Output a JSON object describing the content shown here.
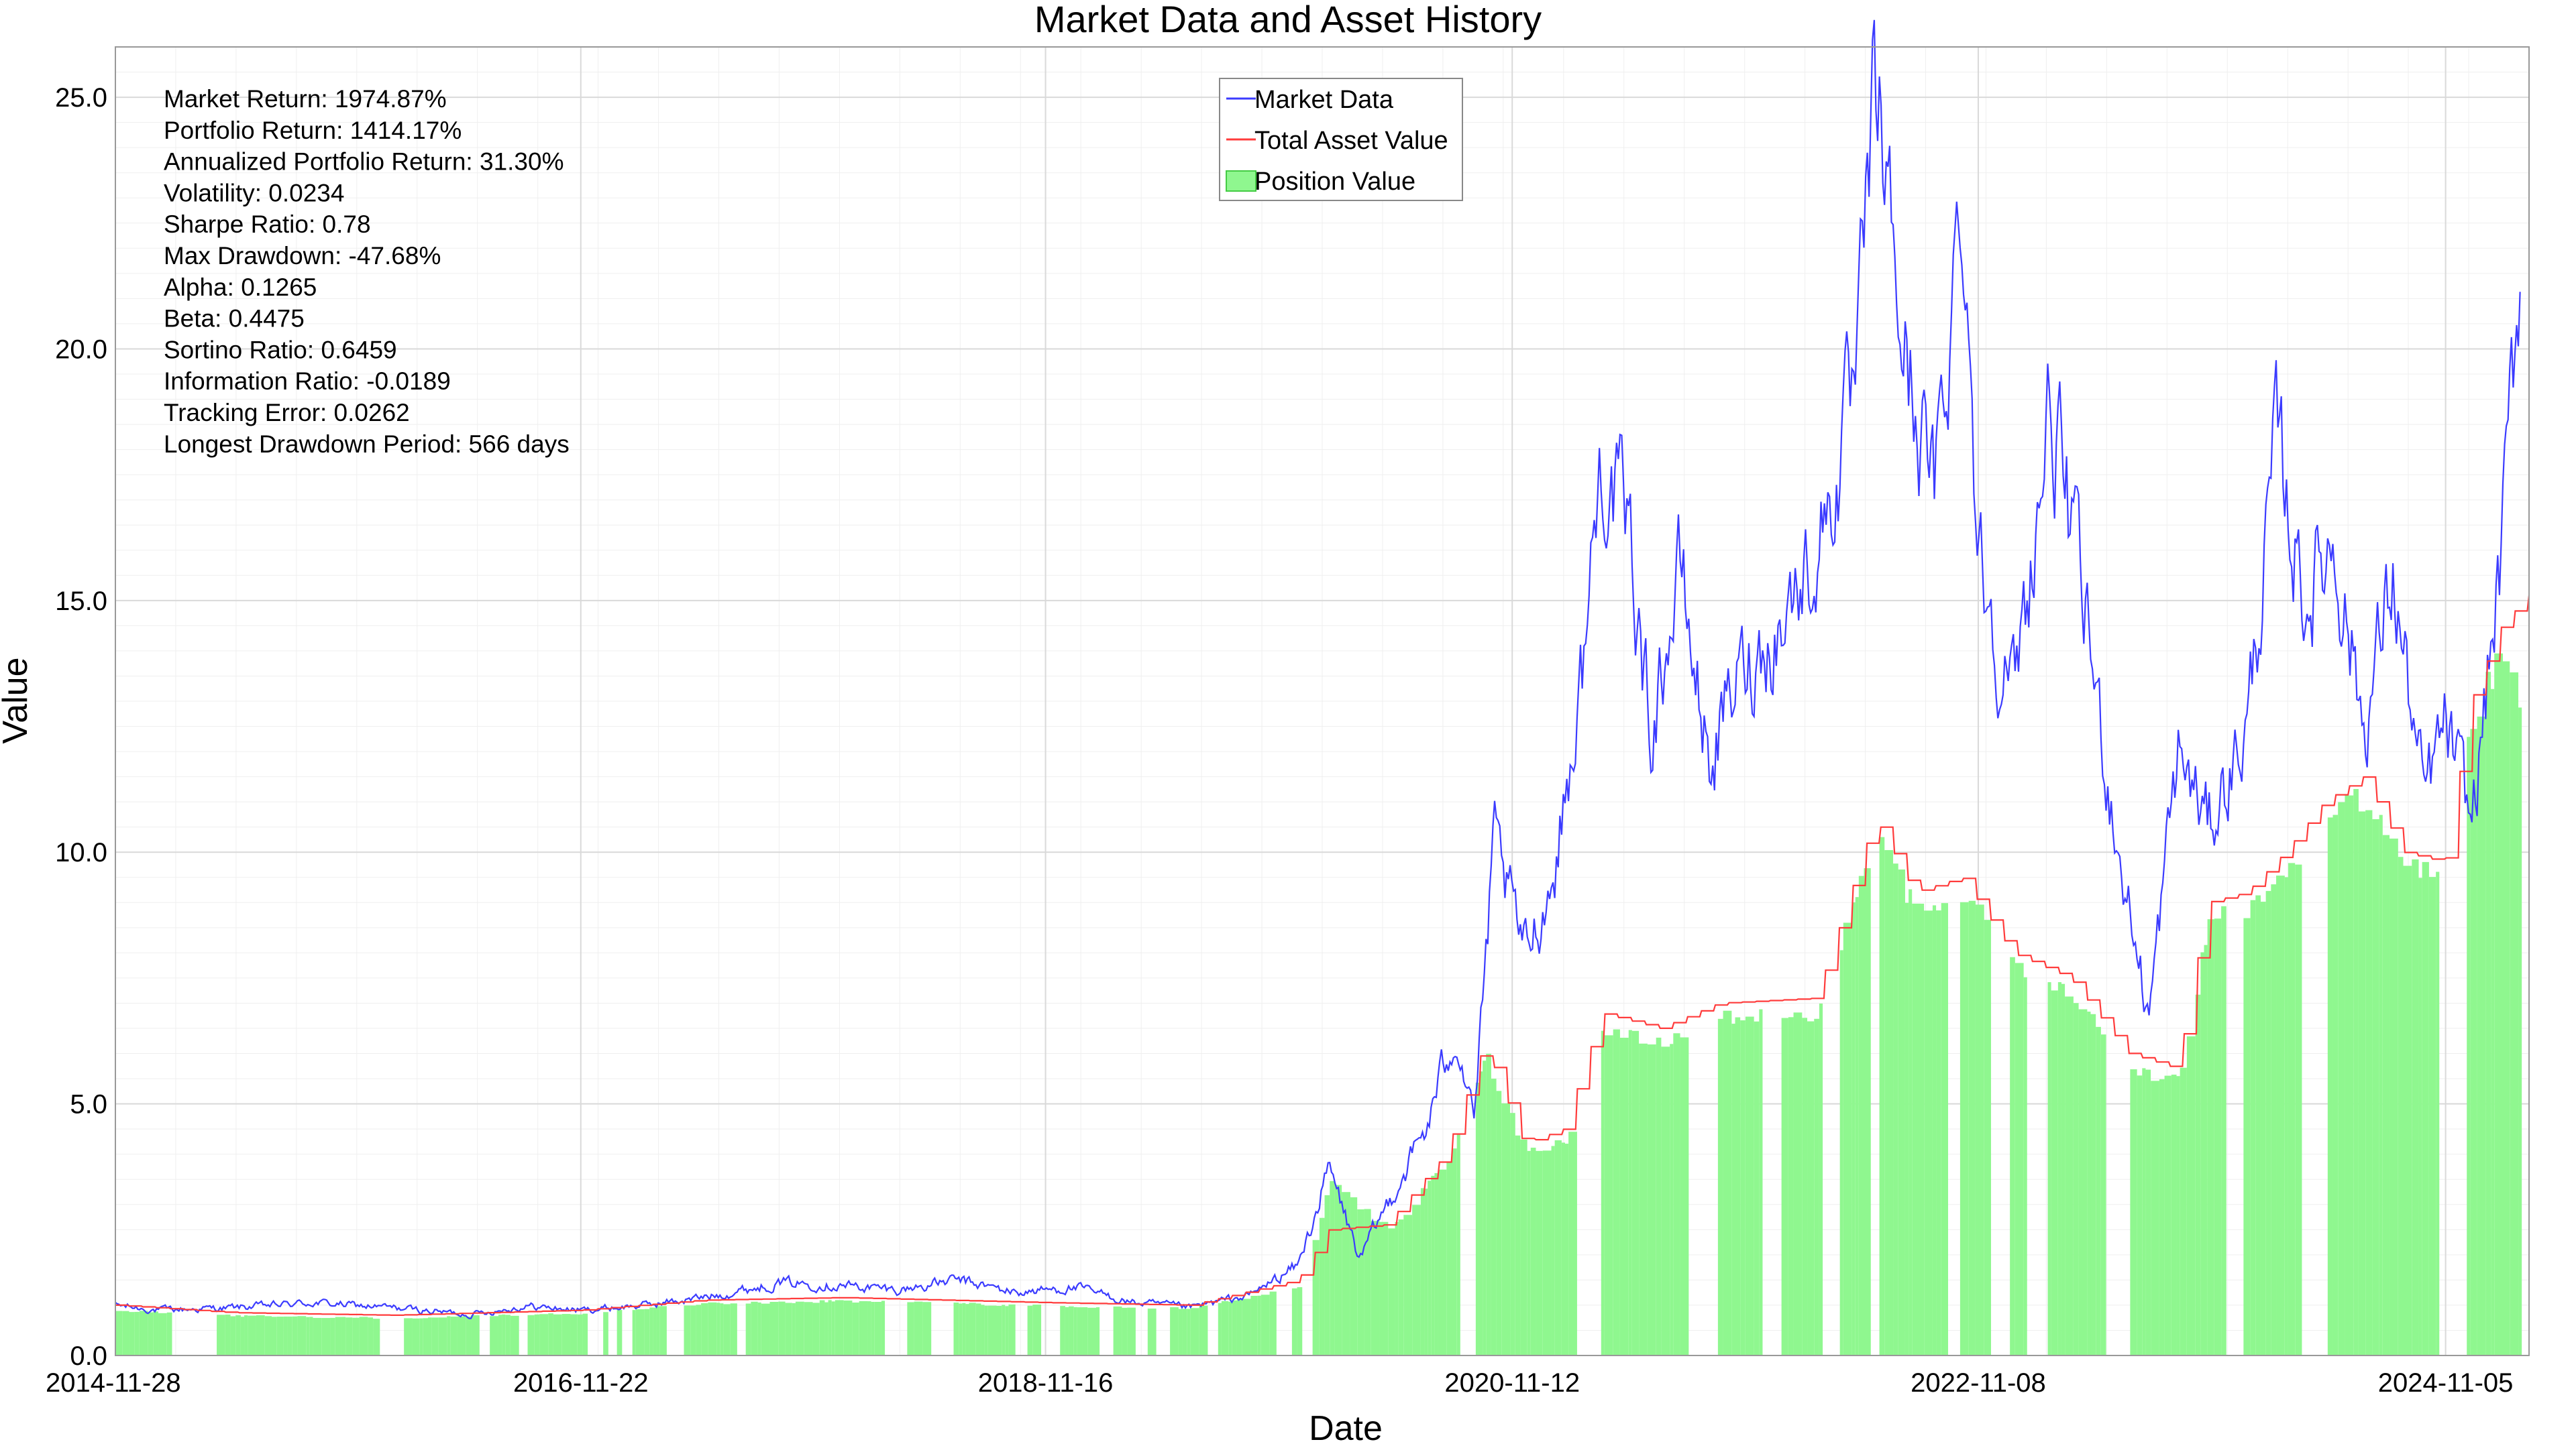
{
  "chart_data": {
    "type": "line",
    "title": "Market Data and Asset History",
    "xlabel": "Date",
    "ylabel": "Value",
    "xlim": [
      "2014-11-28",
      "2025-03-15"
    ],
    "ylim": [
      0,
      26
    ],
    "grid": true,
    "legend_position": "top-center",
    "x_ticks": [
      "2014-11-28",
      "2016-11-22",
      "2018-11-16",
      "2020-11-12",
      "2022-11-08",
      "2024-11-05"
    ],
    "y_ticks": [
      "0.0",
      "5.0",
      "10.0",
      "15.0",
      "20.0",
      "25.0"
    ],
    "series": [
      {
        "name": "Market Data",
        "kind": "line",
        "color": "#3b3bff",
        "points": [
          [
            "2014-11-28",
            1.0
          ],
          [
            "2015-02-01",
            0.9
          ],
          [
            "2015-06-01",
            0.95
          ],
          [
            "2015-10-01",
            1.05
          ],
          [
            "2016-02-01",
            0.95
          ],
          [
            "2016-06-01",
            0.82
          ],
          [
            "2016-09-01",
            0.98
          ],
          [
            "2016-11-22",
            0.9
          ],
          [
            "2017-03-01",
            1.0
          ],
          [
            "2017-06-01",
            1.15
          ],
          [
            "2017-10-01",
            1.45
          ],
          [
            "2018-01-01",
            1.4
          ],
          [
            "2018-04-01",
            1.3
          ],
          [
            "2018-07-01",
            1.5
          ],
          [
            "2018-10-01",
            1.25
          ],
          [
            "2019-01-01",
            1.35
          ],
          [
            "2019-04-01",
            1.05
          ],
          [
            "2019-07-01",
            0.95
          ],
          [
            "2019-10-01",
            1.2
          ],
          [
            "2019-12-15",
            1.8
          ],
          [
            "2020-02-01",
            3.7
          ],
          [
            "2020-03-20",
            1.9
          ],
          [
            "2020-05-01",
            3.0
          ],
          [
            "2020-07-01",
            4.5
          ],
          [
            "2020-08-15",
            6.5
          ],
          [
            "2020-09-15",
            4.8
          ],
          [
            "2020-10-15",
            10.1
          ],
          [
            "2020-12-01",
            8.0
          ],
          [
            "2021-01-15",
            9.5
          ],
          [
            "2021-03-01",
            13.5
          ],
          [
            "2021-04-01",
            18.0
          ],
          [
            "2021-05-15",
            16.0
          ],
          [
            "2021-06-15",
            12.5
          ],
          [
            "2021-08-01",
            15.5
          ],
          [
            "2021-09-15",
            11.8
          ],
          [
            "2021-11-01",
            13.5
          ],
          [
            "2022-01-01",
            14.5
          ],
          [
            "2022-03-01",
            16.0
          ],
          [
            "2022-05-01",
            19.0
          ],
          [
            "2022-06-01",
            25.1
          ],
          [
            "2022-07-15",
            20.0
          ],
          [
            "2022-09-01",
            17.0
          ],
          [
            "2022-10-15",
            23.4
          ],
          [
            "2022-11-08",
            16.0
          ],
          [
            "2023-01-01",
            13.0
          ],
          [
            "2023-03-01",
            18.9
          ],
          [
            "2023-05-01",
            14.0
          ],
          [
            "2023-06-15",
            10.0
          ],
          [
            "2023-08-01",
            6.7
          ],
          [
            "2023-09-15",
            12.0
          ],
          [
            "2023-11-01",
            10.5
          ],
          [
            "2024-01-01",
            12.5
          ],
          [
            "2024-02-15",
            18.0
          ],
          [
            "2024-04-01",
            15.0
          ],
          [
            "2024-05-15",
            16.3
          ],
          [
            "2024-07-01",
            12.5
          ],
          [
            "2024-08-15",
            15.5
          ],
          [
            "2024-10-01",
            11.0
          ],
          [
            "2024-11-05",
            12.5
          ],
          [
            "2024-12-15",
            10.5
          ],
          [
            "2025-02-01",
            16.0
          ],
          [
            "2025-03-01",
            21.6
          ]
        ]
      },
      {
        "name": "Total Asset Value",
        "kind": "line",
        "color": "#ff3b3b",
        "points": [
          [
            "2014-11-28",
            1.0
          ],
          [
            "2015-06-01",
            0.85
          ],
          [
            "2016-02-01",
            0.8
          ],
          [
            "2016-11-22",
            0.9
          ],
          [
            "2017-06-01",
            1.1
          ],
          [
            "2018-01-01",
            1.15
          ],
          [
            "2018-11-16",
            1.05
          ],
          [
            "2019-07-01",
            1.0
          ],
          [
            "2019-12-15",
            1.5
          ],
          [
            "2020-02-01",
            2.5
          ],
          [
            "2020-05-01",
            2.6
          ],
          [
            "2020-08-01",
            4.0
          ],
          [
            "2020-10-01",
            6.2
          ],
          [
            "2020-12-01",
            4.2
          ],
          [
            "2021-02-01",
            4.5
          ],
          [
            "2021-04-01",
            6.8
          ],
          [
            "2021-07-01",
            6.5
          ],
          [
            "2021-10-01",
            7.0
          ],
          [
            "2022-03-01",
            7.1
          ],
          [
            "2022-06-01",
            10.7
          ],
          [
            "2022-08-01",
            9.2
          ],
          [
            "2022-10-15",
            9.5
          ],
          [
            "2023-01-01",
            8.0
          ],
          [
            "2023-04-01",
            7.5
          ],
          [
            "2023-07-01",
            6.0
          ],
          [
            "2023-09-15",
            5.7
          ],
          [
            "2023-11-01",
            9.0
          ],
          [
            "2024-01-01",
            9.2
          ],
          [
            "2024-03-01",
            10.0
          ],
          [
            "2024-05-01",
            11.0
          ],
          [
            "2024-07-01",
            11.5
          ],
          [
            "2024-09-01",
            10.0
          ],
          [
            "2024-11-05",
            9.8
          ],
          [
            "2024-12-15",
            13.0
          ],
          [
            "2025-02-01",
            14.5
          ],
          [
            "2025-03-15",
            15.1
          ]
        ]
      },
      {
        "name": "Position Value",
        "kind": "area",
        "color": "#8ff78f",
        "points": [
          [
            "2014-11-28",
            0.9
          ],
          [
            "2015-06-01",
            0.8
          ],
          [
            "2016-02-01",
            0.75
          ],
          [
            "2016-11-22",
            0.85
          ],
          [
            "2017-06-01",
            1.05
          ],
          [
            "2018-01-01",
            1.1
          ],
          [
            "2018-11-16",
            1.0
          ],
          [
            "2019-07-01",
            0.95
          ],
          [
            "2019-12-15",
            1.4
          ],
          [
            "2020-02-01",
            3.5
          ],
          [
            "2020-05-01",
            2.5
          ],
          [
            "2020-08-01",
            3.9
          ],
          [
            "2020-10-01",
            6.0
          ],
          [
            "2020-12-01",
            4.1
          ],
          [
            "2021-02-01",
            4.3
          ],
          [
            "2021-04-01",
            6.5
          ],
          [
            "2021-07-01",
            6.3
          ],
          [
            "2021-10-01",
            6.8
          ],
          [
            "2022-03-01",
            6.9
          ],
          [
            "2022-06-01",
            10.5
          ],
          [
            "2022-08-01",
            9.0
          ],
          [
            "2022-10-15",
            9.3
          ],
          [
            "2023-01-01",
            7.8
          ],
          [
            "2023-04-01",
            7.3
          ],
          [
            "2023-07-01",
            5.8
          ],
          [
            "2023-09-15",
            5.5
          ],
          [
            "2023-11-01",
            8.8
          ],
          [
            "2024-01-01",
            9.0
          ],
          [
            "2024-03-01",
            9.8
          ],
          [
            "2024-05-01",
            10.8
          ],
          [
            "2024-07-01",
            11.3
          ],
          [
            "2024-09-01",
            9.8
          ],
          [
            "2024-11-05",
            9.6
          ],
          [
            "2024-12-15",
            12.8
          ],
          [
            "2025-02-01",
            14.2
          ],
          [
            "2025-03-01",
            13.0
          ]
        ]
      }
    ],
    "annotations": [
      "Market Return: 1974.87%",
      "Portfolio Return: 1414.17%",
      "Annualized Portfolio Return: 31.30%",
      "Volatility: 0.0234",
      "Sharpe Ratio: 0.78",
      "Max Drawdown: -47.68%",
      "Alpha: 0.1265",
      "Beta: 0.4475",
      "Sortino Ratio: 0.6459",
      "Information Ratio: -0.0189",
      "Tracking Error: 0.0262",
      "Longest Drawdown Period: 566 days"
    ]
  }
}
